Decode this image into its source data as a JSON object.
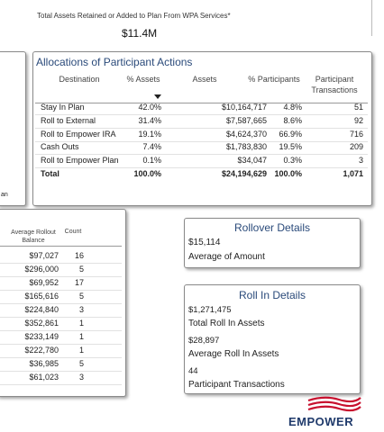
{
  "header": {
    "title": "Total Assets Retained or Added to Plan From WPA Services*",
    "value": "$11.4M"
  },
  "left_fragment": "an",
  "allocations": {
    "title": "Allocations of Participant Actions",
    "columns": [
      "Destination",
      "% Assets",
      "Assets",
      "% Participants",
      "Participant Transactions"
    ],
    "rows": [
      [
        "Stay In Plan",
        "42.0%",
        "$10,164,717",
        "4.8%",
        "51"
      ],
      [
        "Roll to External",
        "31.4%",
        "$7,587,665",
        "8.6%",
        "92"
      ],
      [
        "Roll to Empower IRA",
        "19.1%",
        "$4,624,370",
        "66.9%",
        "716"
      ],
      [
        "Cash Outs",
        "7.4%",
        "$1,783,830",
        "19.5%",
        "209"
      ],
      [
        "Roll to Empower Plan",
        "0.1%",
        "$34,047",
        "0.3%",
        "3"
      ]
    ],
    "total": [
      "Total",
      "100.0%",
      "$24,194,629",
      "100.0%",
      "1,071"
    ]
  },
  "rollout": {
    "columns": [
      "Average Rollout Balance",
      "Count"
    ],
    "rows": [
      [
        "$97,027",
        "16"
      ],
      [
        "$296,000",
        "5"
      ],
      [
        "$69,952",
        "17"
      ],
      [
        "$165,616",
        "5"
      ],
      [
        "$224,840",
        "3"
      ],
      [
        "$352,861",
        "1"
      ],
      [
        "$233,149",
        "1"
      ],
      [
        "$222,780",
        "1"
      ],
      [
        "$36,985",
        "5"
      ],
      [
        "$61,023",
        "3"
      ]
    ]
  },
  "rollover_details": {
    "title": "Rollover Details",
    "value": "$15,114",
    "label": "Average of Amount"
  },
  "roll_in_details": {
    "title": "Roll In Details",
    "items": [
      {
        "value": "$1,271,475",
        "label": "Total Roll In Assets"
      },
      {
        "value": "$28,897",
        "label": "Average Roll In Assets"
      },
      {
        "value": "44",
        "label": "Participant Transactions"
      }
    ]
  },
  "logo": "EMPOWER"
}
